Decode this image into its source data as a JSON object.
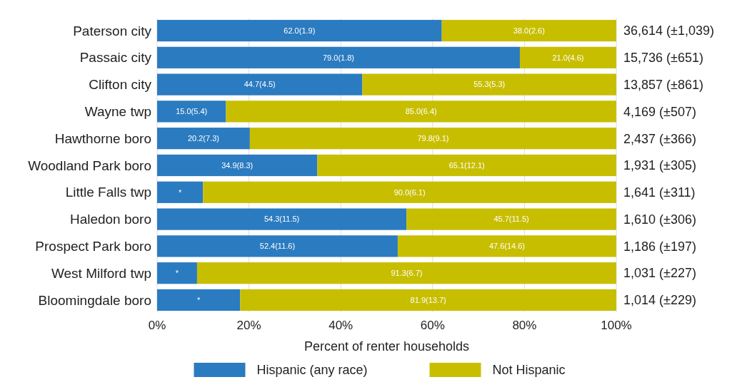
{
  "chart_data": {
    "type": "bar",
    "orientation": "horizontal",
    "stacked": true,
    "xlabel": "Percent of renter households",
    "categories": [
      "Paterson city",
      "Passaic city",
      "Clifton city",
      "Wayne twp",
      "Hawthorne boro",
      "Woodland Park boro",
      "Little Falls twp",
      "Haledon boro",
      "Prospect Park boro",
      "West Milford twp",
      "Bloomingdale boro"
    ],
    "series": [
      {
        "name": "Hispanic (any race)",
        "color": "#2b7bc0",
        "values": [
          62.0,
          79.0,
          44.7,
          15.0,
          20.2,
          34.9,
          10.0,
          54.3,
          52.4,
          8.7,
          18.1
        ],
        "value_labels": [
          "62.0(1.9)",
          "79.0(1.8)",
          "44.7(4.5)",
          "15.0(5.4)",
          "20.2(7.3)",
          "34.9(8.3)",
          "*",
          "54.3(11.5)",
          "52.4(11.6)",
          "*",
          "*"
        ]
      },
      {
        "name": "Not Hispanic",
        "color": "#c8be00",
        "values": [
          38.0,
          21.0,
          55.3,
          85.0,
          79.8,
          65.1,
          90.0,
          45.7,
          47.6,
          91.3,
          81.9
        ],
        "value_labels": [
          "38.0(2.6)",
          "21.0(4.6)",
          "55.3(5.3)",
          "85.0(6.4)",
          "79.8(9.1)",
          "65.1(12.1)",
          "90.0(6.1)",
          "45.7(11.5)",
          "47.6(14.6)",
          "91.3(6.7)",
          "81.9(13.7)"
        ]
      }
    ],
    "totals": [
      "36,614 (±1,039)",
      "15,736 (±651)",
      "13,857 (±861)",
      "4,169 (±507)",
      "2,437 (±366)",
      "1,931 (±305)",
      "1,641 (±311)",
      "1,610 (±306)",
      "1,186 (±197)",
      "1,031 (±227)",
      "1,014 (±229)"
    ],
    "xlim": [
      0,
      100
    ],
    "xticks": [
      {
        "value": 0,
        "label": "0%"
      },
      {
        "value": 20,
        "label": "20%"
      },
      {
        "value": 40,
        "label": "40%"
      },
      {
        "value": 60,
        "label": "60%"
      },
      {
        "value": 80,
        "label": "80%"
      },
      {
        "value": 100,
        "label": "100%"
      }
    ],
    "grid": "x",
    "legend": "bottom"
  }
}
